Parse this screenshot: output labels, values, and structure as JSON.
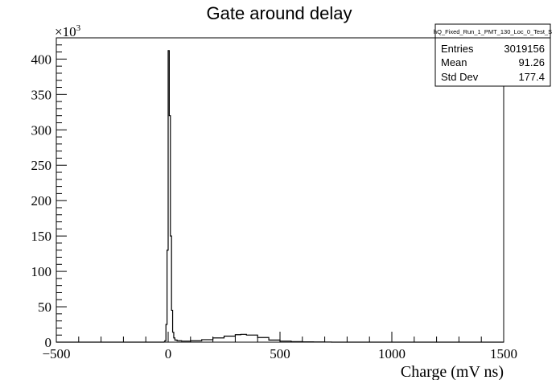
{
  "chart_data": {
    "type": "histogram",
    "title": "Gate around delay",
    "xlabel": "Charge (mV ns)",
    "ylabel": "",
    "y_multiplier_label": "×10",
    "y_multiplier_exp": "3",
    "xlim": [
      -500,
      1500
    ],
    "ylim": [
      0,
      430
    ],
    "y_units": "x1000",
    "x_ticks": [
      -500,
      0,
      500,
      1000,
      1500
    ],
    "y_ticks": [
      0,
      50,
      100,
      150,
      200,
      250,
      300,
      350,
      400
    ],
    "grid": false,
    "bins": {
      "x": [
        -20,
        -15,
        -10,
        -5,
        0,
        5,
        10,
        15,
        20,
        25,
        30,
        40,
        60,
        80,
        100,
        150,
        200,
        250,
        300,
        325,
        350,
        400,
        450,
        500,
        550,
        600,
        650,
        700,
        730
      ],
      "values": [
        0.2,
        2,
        25,
        130,
        412,
        320,
        150,
        45,
        14,
        6,
        3,
        2,
        1.5,
        1.5,
        2,
        3.5,
        6,
        8.5,
        10.5,
        11,
        10,
        6.5,
        3,
        1.5,
        0.8,
        0.5,
        0.3,
        0.2,
        0
      ]
    },
    "stats": {
      "name": "hQ_Fixed_Run_1_PMT_130_Loc_0_Test_S",
      "rows": [
        {
          "label": "Entries",
          "value": "3019156"
        },
        {
          "label": "Mean",
          "value": "91.26"
        },
        {
          "label": "Std Dev",
          "value": "177.4"
        }
      ]
    }
  }
}
